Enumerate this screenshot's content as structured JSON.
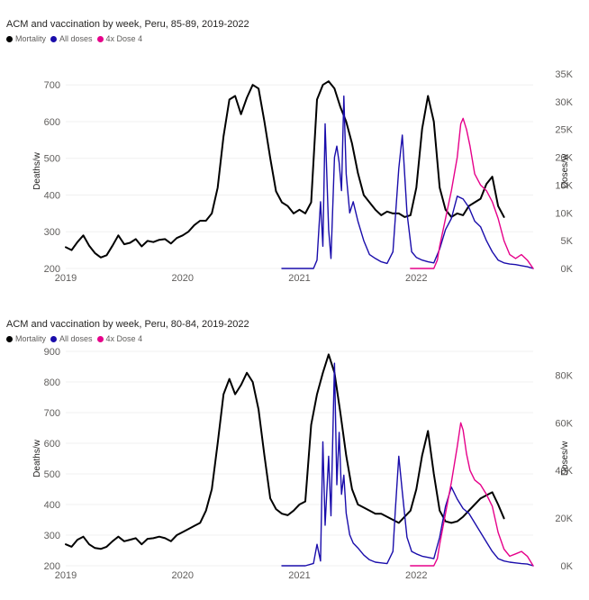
{
  "chart_data": [
    {
      "type": "line",
      "title": "ACM and vaccination by week, Peru, 85-89, 2019-2022",
      "legend": [
        "Mortality",
        "All doses",
        "4x Dose 4"
      ],
      "legend_position": "top-left",
      "ylabel": "Deaths/w",
      "y2label": "Doses/w",
      "ylim": [
        200,
        730
      ],
      "y2lim": [
        0,
        35000
      ],
      "yticks": [
        200,
        300,
        400,
        500,
        600,
        700
      ],
      "y2ticks": [
        0,
        5000,
        10000,
        15000,
        20000,
        25000,
        30000,
        35000
      ],
      "y2tick_labels": [
        "0K",
        "5K",
        "10K",
        "15K",
        "20K",
        "25K",
        "30K",
        "35K"
      ],
      "xticks": [
        2019,
        2020,
        2021,
        2022
      ],
      "xtick_labels": [
        "2019",
        "2020",
        "2021",
        "2022"
      ],
      "xlim": [
        2019.0,
        2023.0
      ],
      "grid": "horizontal",
      "series": [
        {
          "name": "Mortality",
          "axis": "left",
          "color": "#000000",
          "x": [
            2019.0,
            2019.05,
            2019.1,
            2019.15,
            2019.2,
            2019.25,
            2019.3,
            2019.35,
            2019.4,
            2019.45,
            2019.5,
            2019.55,
            2019.6,
            2019.65,
            2019.7,
            2019.75,
            2019.8,
            2019.85,
            2019.9,
            2019.95,
            2020.0,
            2020.05,
            2020.1,
            2020.15,
            2020.2,
            2020.25,
            2020.3,
            2020.35,
            2020.4,
            2020.45,
            2020.5,
            2020.55,
            2020.6,
            2020.65,
            2020.7,
            2020.75,
            2020.8,
            2020.85,
            2020.9,
            2020.95,
            2021.0,
            2021.05,
            2021.1,
            2021.15,
            2021.2,
            2021.25,
            2021.3,
            2021.35,
            2021.4,
            2021.45,
            2021.5,
            2021.55,
            2021.6,
            2021.65,
            2021.7,
            2021.75,
            2021.8,
            2021.85,
            2021.9,
            2021.95,
            2022.0,
            2022.05,
            2022.1,
            2022.15,
            2022.2,
            2022.25,
            2022.3,
            2022.35,
            2022.4,
            2022.45,
            2022.5,
            2022.55,
            2022.6,
            2022.65,
            2022.7,
            2022.75
          ],
          "values": [
            258,
            250,
            272,
            290,
            262,
            242,
            230,
            236,
            262,
            290,
            266,
            270,
            280,
            260,
            275,
            272,
            278,
            280,
            268,
            283,
            290,
            300,
            318,
            330,
            330,
            350,
            420,
            560,
            660,
            670,
            620,
            665,
            700,
            690,
            600,
            500,
            410,
            380,
            370,
            350,
            360,
            350,
            380,
            660,
            700,
            710,
            690,
            640,
            600,
            540,
            460,
            400,
            380,
            360,
            345,
            355,
            350,
            350,
            340,
            345,
            420,
            580,
            670,
            600,
            420,
            360,
            340,
            350,
            345,
            370,
            380,
            390,
            430,
            450,
            370,
            340
          ]
        },
        {
          "name": "All doses",
          "axis": "right",
          "color": "#1a0dab",
          "x": [
            2020.85,
            2020.95,
            2021.05,
            2021.12,
            2021.15,
            2021.18,
            2021.2,
            2021.22,
            2021.25,
            2021.27,
            2021.3,
            2021.32,
            2021.34,
            2021.36,
            2021.38,
            2021.4,
            2021.43,
            2021.46,
            2021.5,
            2021.55,
            2021.6,
            2021.65,
            2021.7,
            2021.75,
            2021.8,
            2021.82,
            2021.85,
            2021.88,
            2021.92,
            2021.96,
            2022.0,
            2022.05,
            2022.1,
            2022.15,
            2022.2,
            2022.25,
            2022.3,
            2022.35,
            2022.4,
            2022.45,
            2022.5,
            2022.55,
            2022.6,
            2022.65,
            2022.7,
            2022.75,
            2022.8,
            2022.85,
            2022.9,
            2022.95,
            2023.0
          ],
          "values": [
            0,
            0,
            0,
            0,
            1500,
            12000,
            4000,
            26000,
            7000,
            1800,
            20000,
            22000,
            19000,
            14000,
            31000,
            17000,
            10000,
            12000,
            8500,
            5000,
            2500,
            1800,
            1200,
            900,
            3000,
            9000,
            18000,
            24000,
            10000,
            3000,
            2000,
            1500,
            1200,
            1000,
            3500,
            7000,
            9000,
            13000,
            12500,
            11000,
            8500,
            7500,
            5000,
            3000,
            1500,
            1000,
            800,
            700,
            500,
            300,
            0
          ]
        },
        {
          "name": "4x Dose 4",
          "axis": "right",
          "color": "#e6008a",
          "x": [
            2021.95,
            2022.0,
            2022.05,
            2022.1,
            2022.15,
            2022.18,
            2022.2,
            2022.25,
            2022.3,
            2022.35,
            2022.38,
            2022.4,
            2022.43,
            2022.46,
            2022.5,
            2022.55,
            2022.6,
            2022.65,
            2022.7,
            2022.75,
            2022.8,
            2022.85,
            2022.9,
            2022.95,
            2023.0
          ],
          "values": [
            0,
            0,
            0,
            0,
            0,
            1500,
            4000,
            9000,
            14000,
            20000,
            26000,
            27000,
            25000,
            22000,
            17000,
            15000,
            14000,
            12000,
            9000,
            5000,
            2500,
            1800,
            2500,
            1500,
            0
          ]
        }
      ]
    },
    {
      "type": "line",
      "title": "ACM and vaccination by week, Peru, 80-84, 2019-2022",
      "legend": [
        "Mortality",
        "All doses",
        "4x Dose 4"
      ],
      "legend_position": "top-left",
      "ylabel": "Deaths/w",
      "y2label": "Doses/w",
      "ylim": [
        200,
        900
      ],
      "y2lim": [
        0,
        90000
      ],
      "yticks": [
        200,
        300,
        400,
        500,
        600,
        700,
        800,
        900
      ],
      "y2ticks": [
        0,
        20000,
        40000,
        60000,
        80000
      ],
      "y2tick_labels": [
        "0K",
        "20K",
        "40K",
        "60K",
        "80K"
      ],
      "xticks": [
        2019,
        2020,
        2021,
        2022
      ],
      "xtick_labels": [
        "2019",
        "2020",
        "2021",
        "2022"
      ],
      "xlim": [
        2019.0,
        2023.0
      ],
      "grid": "horizontal",
      "series": [
        {
          "name": "Mortality",
          "axis": "left",
          "color": "#000000",
          "x": [
            2019.0,
            2019.05,
            2019.1,
            2019.15,
            2019.2,
            2019.25,
            2019.3,
            2019.35,
            2019.4,
            2019.45,
            2019.5,
            2019.55,
            2019.6,
            2019.65,
            2019.7,
            2019.75,
            2019.8,
            2019.85,
            2019.9,
            2019.95,
            2020.0,
            2020.05,
            2020.1,
            2020.15,
            2020.2,
            2020.25,
            2020.3,
            2020.35,
            2020.4,
            2020.45,
            2020.5,
            2020.55,
            2020.6,
            2020.65,
            2020.7,
            2020.75,
            2020.8,
            2020.85,
            2020.9,
            2020.95,
            2021.0,
            2021.05,
            2021.1,
            2021.15,
            2021.2,
            2021.25,
            2021.3,
            2021.35,
            2021.4,
            2021.45,
            2021.5,
            2021.55,
            2021.6,
            2021.65,
            2021.7,
            2021.75,
            2021.8,
            2021.85,
            2021.9,
            2021.95,
            2022.0,
            2022.05,
            2022.1,
            2022.15,
            2022.2,
            2022.25,
            2022.3,
            2022.35,
            2022.4,
            2022.45,
            2022.5,
            2022.55,
            2022.6,
            2022.65,
            2022.7,
            2022.75
          ],
          "values": [
            270,
            262,
            285,
            295,
            270,
            258,
            255,
            262,
            280,
            295,
            280,
            285,
            290,
            270,
            288,
            290,
            295,
            290,
            280,
            300,
            310,
            320,
            330,
            340,
            380,
            450,
            600,
            760,
            810,
            760,
            790,
            830,
            800,
            710,
            560,
            420,
            385,
            370,
            365,
            380,
            400,
            410,
            660,
            760,
            830,
            890,
            830,
            700,
            560,
            450,
            400,
            390,
            380,
            370,
            370,
            360,
            350,
            340,
            360,
            380,
            450,
            560,
            640,
            500,
            380,
            345,
            340,
            345,
            360,
            380,
            400,
            420,
            430,
            440,
            400,
            355
          ]
        },
        {
          "name": "All doses",
          "axis": "right",
          "color": "#1a0dab",
          "x": [
            2020.85,
            2020.95,
            2021.05,
            2021.12,
            2021.15,
            2021.18,
            2021.2,
            2021.22,
            2021.25,
            2021.27,
            2021.3,
            2021.32,
            2021.34,
            2021.36,
            2021.38,
            2021.4,
            2021.43,
            2021.46,
            2021.5,
            2021.55,
            2021.6,
            2021.65,
            2021.7,
            2021.75,
            2021.8,
            2021.82,
            2021.85,
            2021.88,
            2021.92,
            2021.96,
            2022.0,
            2022.05,
            2022.1,
            2022.15,
            2022.2,
            2022.25,
            2022.3,
            2022.35,
            2022.4,
            2022.45,
            2022.5,
            2022.55,
            2022.6,
            2022.65,
            2022.7,
            2022.75,
            2022.8,
            2022.85,
            2022.9,
            2022.95,
            2023.0
          ],
          "values": [
            0,
            0,
            0,
            1000,
            9000,
            2000,
            52000,
            17000,
            46000,
            21000,
            85000,
            34000,
            56000,
            30000,
            38000,
            22000,
            13000,
            9500,
            7500,
            4500,
            2500,
            1500,
            1200,
            900,
            6000,
            23000,
            46000,
            31000,
            12000,
            6000,
            5000,
            4000,
            3500,
            3000,
            12000,
            25000,
            33000,
            28000,
            24000,
            22000,
            18000,
            14000,
            10000,
            6000,
            3000,
            2000,
            1500,
            1200,
            900,
            700,
            0
          ]
        },
        {
          "name": "4x Dose 4",
          "axis": "right",
          "color": "#e6008a",
          "x": [
            2021.95,
            2022.0,
            2022.05,
            2022.1,
            2022.15,
            2022.18,
            2022.2,
            2022.25,
            2022.3,
            2022.35,
            2022.38,
            2022.4,
            2022.43,
            2022.46,
            2022.5,
            2022.55,
            2022.6,
            2022.65,
            2022.7,
            2022.75,
            2022.8,
            2022.85,
            2022.9,
            2022.95,
            2023.0
          ],
          "values": [
            0,
            0,
            0,
            0,
            0,
            3000,
            9000,
            22000,
            35000,
            50000,
            60000,
            57000,
            47000,
            40000,
            36000,
            34000,
            30000,
            25000,
            14000,
            7000,
            4000,
            5000,
            6000,
            4000,
            0
          ]
        }
      ]
    }
  ]
}
